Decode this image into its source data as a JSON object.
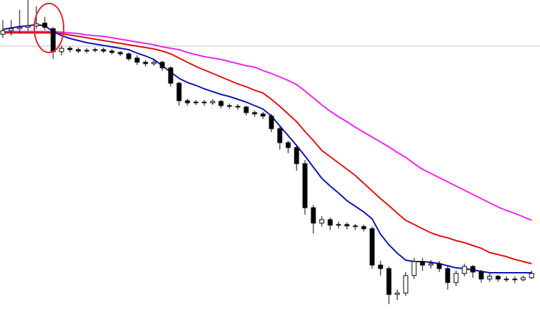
{
  "chart_data": {
    "type": "candlestick",
    "categories": [
      null,
      null,
      null,
      null,
      null,
      null,
      null,
      null,
      null,
      null,
      null,
      null,
      null,
      null,
      null,
      null,
      null,
      null,
      null,
      null,
      null,
      null,
      null,
      null,
      null,
      null,
      null,
      null,
      null,
      null,
      null,
      null,
      null,
      null,
      null,
      null,
      null,
      null,
      null,
      null,
      null,
      null,
      null,
      null,
      null,
      null,
      null,
      null,
      null,
      null,
      null,
      null,
      null,
      null,
      null,
      null,
      null,
      null,
      null,
      null,
      null,
      null,
      null,
      null
    ],
    "ylim": [
      0,
      469
    ],
    "up_color": "#ffffff",
    "down_color": "#000000",
    "outline_color": "#000000",
    "open": [
      420,
      425,
      428,
      430,
      432,
      436,
      428,
      395,
      400,
      398,
      396,
      397,
      398,
      396,
      394,
      392,
      386,
      380,
      378,
      380,
      372,
      350,
      325,
      322,
      323,
      322,
      324,
      318,
      317,
      316,
      308,
      306,
      303,
      285,
      265,
      258,
      235,
      172,
      150,
      155,
      147,
      148,
      146,
      145,
      142,
      90,
      85,
      48,
      50,
      75,
      95,
      90,
      92,
      85,
      65,
      78,
      88,
      80,
      70,
      74,
      70,
      70,
      69,
      72
    ],
    "high": [
      440,
      440,
      455,
      469,
      460,
      445,
      430,
      404,
      403,
      401,
      400,
      401,
      401,
      399,
      396,
      394,
      390,
      383,
      384,
      382,
      374,
      352,
      328,
      326,
      326,
      327,
      326,
      321,
      320,
      318,
      311,
      309,
      306,
      288,
      268,
      262,
      240,
      176,
      160,
      158,
      152,
      151,
      149,
      148,
      145,
      96,
      88,
      55,
      80,
      100,
      100,
      97,
      96,
      88,
      82,
      92,
      90,
      83,
      78,
      76,
      74,
      74,
      75,
      82
    ],
    "low": [
      415,
      418,
      422,
      425,
      428,
      426,
      385,
      390,
      394,
      393,
      393,
      394,
      393,
      391,
      389,
      382,
      376,
      374,
      375,
      368,
      345,
      318,
      318,
      319,
      318,
      319,
      314,
      313,
      312,
      304,
      302,
      299,
      280,
      255,
      250,
      225,
      162,
      135,
      145,
      140,
      142,
      141,
      140,
      138,
      85,
      75,
      34,
      40,
      46,
      70,
      82,
      85,
      80,
      55,
      60,
      74,
      72,
      65,
      66,
      66,
      66,
      64,
      67,
      70
    ],
    "close": [
      425,
      428,
      430,
      432,
      435,
      430,
      395,
      400,
      398,
      396,
      397,
      398,
      396,
      394,
      392,
      385,
      380,
      378,
      380,
      372,
      350,
      325,
      322,
      323,
      322,
      324,
      318,
      317,
      316,
      308,
      306,
      303,
      285,
      265,
      258,
      235,
      172,
      150,
      155,
      147,
      148,
      146,
      145,
      142,
      90,
      85,
      48,
      50,
      75,
      95,
      90,
      92,
      85,
      65,
      78,
      88,
      80,
      70,
      74,
      70,
      70,
      69,
      72,
      78
    ],
    "series": [
      {
        "color": "#ee22ee",
        "values": [
          424,
          424,
          424,
          424,
          424,
          424,
          424,
          423,
          422,
          421,
          419,
          418,
          417,
          415,
          413,
          411,
          409,
          407,
          405,
          402,
          400,
          398,
          394,
          391,
          388,
          386,
          384,
          381,
          378,
          375,
          373,
          368,
          364,
          359,
          354,
          348,
          339,
          329,
          319,
          310,
          302,
          295,
          287,
          280,
          273,
          266,
          259,
          251,
          244,
          235,
          227,
          221,
          215,
          209,
          203,
          197,
          191,
          185,
          179,
          173,
          168,
          164,
          159,
          154
        ]
      },
      {
        "color": "#dd1111",
        "values": [
          422,
          422,
          422,
          422,
          422,
          422,
          422,
          421,
          419,
          417,
          415,
          413,
          411,
          409,
          407,
          405,
          403,
          401,
          399,
          396,
          392,
          386,
          380,
          374,
          369,
          364,
          359,
          354,
          349,
          345,
          340,
          336,
          327,
          317,
          306,
          295,
          281,
          268,
          254,
          245,
          236,
          227,
          218,
          207,
          196,
          185,
          175,
          164,
          154,
          148,
          142,
          136,
          132,
          129,
          125,
          122,
          118,
          114,
          108,
          105,
          102,
          98,
          95,
          92
        ]
      },
      {
        "color": "#0a14b4",
        "values": [
          427,
          429,
          431,
          432,
          434,
          432,
          424,
          418,
          414,
          411,
          408,
          406,
          404,
          402,
          400,
          398,
          393,
          389,
          384,
          375,
          366,
          357,
          351,
          347,
          342,
          338,
          334,
          331,
          327,
          323,
          318,
          313,
          303,
          289,
          275,
          261,
          246,
          230,
          214,
          203,
          193,
          182,
          174,
          166,
          156,
          134,
          119,
          107,
          97,
          95,
          95,
          94,
          92,
          89,
          86,
          85,
          83,
          81,
          79,
          79,
          79,
          79,
          79,
          79
        ]
      }
    ],
    "price_line": 403,
    "price_line_color": "#c0c0c0"
  }
}
